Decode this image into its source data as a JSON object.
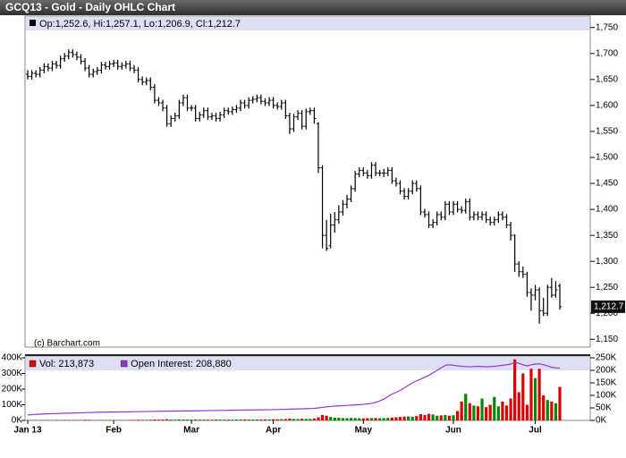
{
  "header": {
    "title": "GCQ13 - Gold - Daily OHLC Chart"
  },
  "chart_data": [
    {
      "type": "ohlc",
      "legend_text": "Op:1,252.6, Hi:1,257.1, Lo:1,206.9, Cl:1,212.7",
      "last_price_label": "1,212.7",
      "source": "(c) Barchart.com",
      "color": "#000000",
      "open": [
        1660,
        1656,
        1662,
        1660,
        1668,
        1675,
        1672,
        1680,
        1677,
        1690,
        1695,
        1702,
        1698,
        1693,
        1685,
        1672,
        1660,
        1665,
        1668,
        1678,
        1675,
        1680,
        1682,
        1675,
        1677,
        1680,
        1672,
        1668,
        1650,
        1645,
        1648,
        1635,
        1610,
        1605,
        1595,
        1565,
        1575,
        1580,
        1605,
        1615,
        1595,
        1595,
        1575,
        1582,
        1590,
        1578,
        1580,
        1575,
        1582,
        1590,
        1588,
        1592,
        1595,
        1605,
        1600,
        1610,
        1612,
        1615,
        1608,
        1605,
        1610,
        1600,
        1598,
        1605,
        1580,
        1555,
        1578,
        1585,
        1560,
        1588,
        1590,
        1565,
        1480,
        1350,
        1330,
        1370,
        1380,
        1395,
        1410,
        1420,
        1440,
        1468,
        1475,
        1470,
        1465,
        1485,
        1470,
        1470,
        1470,
        1475,
        1455,
        1450,
        1435,
        1425,
        1435,
        1450,
        1440,
        1395,
        1390,
        1370,
        1375,
        1390,
        1385,
        1410,
        1395,
        1410,
        1400,
        1398,
        1415,
        1385,
        1390,
        1385,
        1390,
        1380,
        1375,
        1380,
        1390,
        1385,
        1370,
        1350,
        1295,
        1280,
        1275,
        1240,
        1235,
        1245,
        1205,
        1200,
        1250,
        1235,
        1252.6
      ],
      "high": [
        1668,
        1668,
        1668,
        1674,
        1681,
        1681,
        1686,
        1686,
        1696,
        1701,
        1708,
        1708,
        1704,
        1699,
        1691,
        1678,
        1671,
        1674,
        1684,
        1684,
        1686,
        1688,
        1688,
        1683,
        1686,
        1686,
        1678,
        1674,
        1656,
        1654,
        1654,
        1641,
        1616,
        1611,
        1601,
        1581,
        1586,
        1611,
        1621,
        1621,
        1601,
        1601,
        1588,
        1596,
        1596,
        1586,
        1586,
        1588,
        1596,
        1596,
        1598,
        1601,
        1611,
        1611,
        1616,
        1618,
        1621,
        1621,
        1614,
        1616,
        1616,
        1606,
        1611,
        1611,
        1586,
        1584,
        1591,
        1591,
        1594,
        1596,
        1596,
        1568,
        1485,
        1380,
        1392,
        1395,
        1408,
        1418,
        1428,
        1446,
        1474,
        1481,
        1481,
        1476,
        1491,
        1491,
        1476,
        1478,
        1481,
        1481,
        1461,
        1456,
        1441,
        1441,
        1456,
        1456,
        1446,
        1401,
        1396,
        1381,
        1396,
        1396,
        1416,
        1416,
        1416,
        1416,
        1406,
        1421,
        1421,
        1396,
        1396,
        1396,
        1396,
        1386,
        1386,
        1396,
        1396,
        1391,
        1376,
        1352,
        1300,
        1290,
        1280,
        1248,
        1255,
        1250,
        1230,
        1255,
        1268,
        1262,
        1257.1
      ],
      "low": [
        1650,
        1650,
        1654,
        1654,
        1662,
        1666,
        1666,
        1671,
        1671,
        1684,
        1689,
        1692,
        1687,
        1679,
        1666,
        1654,
        1654,
        1659,
        1662,
        1669,
        1669,
        1674,
        1669,
        1669,
        1671,
        1666,
        1662,
        1644,
        1639,
        1639,
        1629,
        1604,
        1599,
        1589,
        1559,
        1559,
        1569,
        1574,
        1599,
        1589,
        1589,
        1569,
        1569,
        1576,
        1572,
        1572,
        1569,
        1569,
        1576,
        1582,
        1582,
        1586,
        1589,
        1594,
        1594,
        1604,
        1606,
        1602,
        1599,
        1599,
        1594,
        1592,
        1592,
        1574,
        1545,
        1549,
        1572,
        1554,
        1554,
        1582,
        1565,
        1470,
        1325,
        1320,
        1325,
        1355,
        1372,
        1388,
        1402,
        1414,
        1434,
        1462,
        1464,
        1459,
        1459,
        1464,
        1464,
        1462,
        1464,
        1449,
        1444,
        1429,
        1419,
        1419,
        1429,
        1434,
        1389,
        1384,
        1364,
        1364,
        1369,
        1379,
        1379,
        1389,
        1389,
        1394,
        1392,
        1392,
        1379,
        1379,
        1379,
        1379,
        1374,
        1369,
        1369,
        1374,
        1379,
        1364,
        1340,
        1280,
        1270,
        1268,
        1232,
        1205,
        1225,
        1180,
        1195,
        1195,
        1230,
        1230,
        1206.9
      ],
      "close": [
        1656,
        1662,
        1660,
        1668,
        1675,
        1672,
        1680,
        1677,
        1690,
        1695,
        1702,
        1698,
        1693,
        1685,
        1672,
        1660,
        1665,
        1668,
        1678,
        1675,
        1680,
        1682,
        1675,
        1677,
        1680,
        1672,
        1668,
        1650,
        1645,
        1648,
        1635,
        1610,
        1605,
        1595,
        1565,
        1575,
        1580,
        1605,
        1615,
        1595,
        1595,
        1575,
        1582,
        1590,
        1578,
        1580,
        1575,
        1582,
        1590,
        1588,
        1592,
        1595,
        1605,
        1600,
        1610,
        1612,
        1615,
        1608,
        1605,
        1610,
        1600,
        1598,
        1605,
        1580,
        1555,
        1578,
        1585,
        1560,
        1588,
        1590,
        1575,
        1480,
        1350,
        1325,
        1370,
        1380,
        1395,
        1410,
        1420,
        1440,
        1468,
        1475,
        1470,
        1465,
        1485,
        1470,
        1470,
        1470,
        1475,
        1455,
        1450,
        1435,
        1425,
        1435,
        1450,
        1440,
        1395,
        1390,
        1370,
        1375,
        1390,
        1385,
        1410,
        1395,
        1410,
        1400,
        1398,
        1415,
        1385,
        1390,
        1385,
        1390,
        1380,
        1375,
        1380,
        1390,
        1385,
        1370,
        1350,
        1295,
        1280,
        1275,
        1240,
        1235,
        1245,
        1205,
        1200,
        1250,
        1235,
        1245,
        1212.7
      ],
      "ylim": [
        1135,
        1772
      ],
      "yticks": [
        {
          "value": 1150,
          "label": "1,150"
        },
        {
          "value": 1200,
          "label": "1,200"
        },
        {
          "value": 1250,
          "label": "1,250"
        },
        {
          "value": 1300,
          "label": "1,300"
        },
        {
          "value": 1350,
          "label": "1,350"
        },
        {
          "value": 1400,
          "label": "1,400"
        },
        {
          "value": 1450,
          "label": "1,450"
        },
        {
          "value": 1500,
          "label": "1,500"
        },
        {
          "value": 1550,
          "label": "1,550"
        },
        {
          "value": 1600,
          "label": "1,600"
        },
        {
          "value": 1650,
          "label": "1,650"
        },
        {
          "value": 1700,
          "label": "1,700"
        },
        {
          "value": 1750,
          "label": "1,750"
        }
      ]
    },
    {
      "type": "volume",
      "up_color": "#008800",
      "down_color": "#dd0000",
      "categories": [
        "Jan 13",
        null,
        null,
        null,
        null,
        null,
        null,
        null,
        null,
        null,
        null,
        null,
        null,
        null,
        null,
        null,
        null,
        null,
        null,
        null,
        null,
        "Feb",
        null,
        null,
        null,
        null,
        null,
        null,
        null,
        null,
        null,
        null,
        null,
        null,
        null,
        null,
        null,
        null,
        null,
        null,
        "Mar",
        null,
        null,
        null,
        null,
        null,
        null,
        null,
        null,
        null,
        null,
        null,
        null,
        null,
        null,
        null,
        null,
        null,
        null,
        null,
        "Apr",
        null,
        null,
        null,
        null,
        null,
        null,
        null,
        null,
        null,
        null,
        null,
        null,
        null,
        null,
        null,
        null,
        null,
        null,
        null,
        null,
        null,
        "May",
        null,
        null,
        null,
        null,
        null,
        null,
        null,
        null,
        null,
        null,
        null,
        null,
        null,
        null,
        null,
        null,
        null,
        null,
        null,
        null,
        null,
        "Jun",
        null,
        null,
        null,
        null,
        null,
        null,
        null,
        null,
        null,
        null,
        null,
        null,
        null,
        null,
        null,
        null,
        null,
        null,
        null,
        "Jul",
        null,
        null,
        null,
        null,
        null,
        null
      ],
      "series": [
        {
          "name": "Vol: 213,873",
          "color": "#dd0000",
          "values": [
            3000,
            2500,
            2800,
            3200,
            2600,
            3000,
            2900,
            3100,
            2700,
            3500,
            3300,
            2800,
            3000,
            2600,
            4000,
            3800,
            3000,
            2700,
            3100,
            2900,
            3300,
            3000,
            2800,
            3200,
            2900,
            3100,
            3400,
            4500,
            3800,
            3500,
            4200,
            6000,
            5000,
            5500,
            8000,
            6000,
            5000,
            6500,
            5800,
            5200,
            5000,
            6000,
            5500,
            5200,
            4800,
            5000,
            5300,
            5100,
            4900,
            5600,
            5400,
            6000,
            5800,
            6200,
            5900,
            6100,
            6300,
            6500,
            6800,
            7000,
            7500,
            7200,
            8000,
            9000,
            12000,
            9500,
            9000,
            11000,
            10000,
            9500,
            12000,
            20000,
            35000,
            30000,
            22000,
            18000,
            17000,
            15000,
            14000,
            16000,
            15000,
            14000,
            13000,
            14000,
            15000,
            16000,
            14000,
            15000,
            16000,
            18000,
            20000,
            22000,
            25000,
            26000,
            24000,
            28000,
            40000,
            35000,
            42000,
            38000,
            30000,
            32000,
            35000,
            30000,
            33000,
            60000,
            120000,
            170000,
            110000,
            95000,
            90000,
            140000,
            85000,
            100000,
            150000,
            90000,
            120000,
            95000,
            140000,
            390000,
            180000,
            300000,
            100000,
            330000,
            270000,
            330000,
            160000,
            130000,
            120000,
            110000,
            213873
          ]
        },
        {
          "name": "Open Interest: 208,880",
          "color": "#9933cc",
          "axis": "y2",
          "values": [
            22000,
            23000,
            24000,
            25000,
            26000,
            26500,
            27000,
            27500,
            28000,
            28500,
            29000,
            29500,
            30000,
            30500,
            31000,
            31500,
            32000,
            32500,
            33000,
            33000,
            33500,
            33500,
            34000,
            34000,
            34500,
            34500,
            35000,
            35000,
            35500,
            35500,
            36000,
            36000,
            36500,
            36500,
            37000,
            37000,
            37500,
            37500,
            38000,
            38000,
            38000,
            38500,
            38500,
            39000,
            39000,
            39500,
            39500,
            40000,
            40000,
            40500,
            40500,
            41000,
            41000,
            41500,
            41500,
            42000,
            42000,
            42500,
            42500,
            43000,
            43000,
            43500,
            44000,
            44500,
            45000,
            45500,
            46000,
            46500,
            47000,
            47500,
            48000,
            50000,
            52000,
            54000,
            56000,
            57000,
            58000,
            59000,
            60000,
            61000,
            62000,
            63000,
            64000,
            66000,
            68000,
            72000,
            78000,
            85000,
            95000,
            105000,
            112000,
            120000,
            130000,
            140000,
            150000,
            158000,
            165000,
            172000,
            180000,
            190000,
            200000,
            210000,
            220000,
            222000,
            220000,
            218000,
            216000,
            215000,
            214000,
            215000,
            216000,
            215000,
            214000,
            215000,
            216000,
            218000,
            220000,
            222000,
            225000,
            232000,
            228000,
            222000,
            218000,
            222000,
            225000,
            226000,
            222000,
            218000,
            212000,
            210000,
            208880
          ]
        }
      ],
      "ylim": [
        0,
        400000
      ],
      "yticks": [
        {
          "value": 0,
          "label": "0K"
        },
        {
          "value": 100000,
          "label": "100K"
        },
        {
          "value": 200000,
          "label": "200K"
        },
        {
          "value": 300000,
          "label": "300K"
        },
        {
          "value": 400000,
          "label": "400K"
        }
      ],
      "y2lim": [
        0,
        250000
      ],
      "y2ticks": [
        {
          "value": 0,
          "label": "0K"
        },
        {
          "value": 50000,
          "label": "50K"
        },
        {
          "value": 100000,
          "label": "100K"
        },
        {
          "value": 150000,
          "label": "150K"
        },
        {
          "value": 200000,
          "label": "200K"
        },
        {
          "value": 250000,
          "label": "250K"
        }
      ]
    }
  ]
}
